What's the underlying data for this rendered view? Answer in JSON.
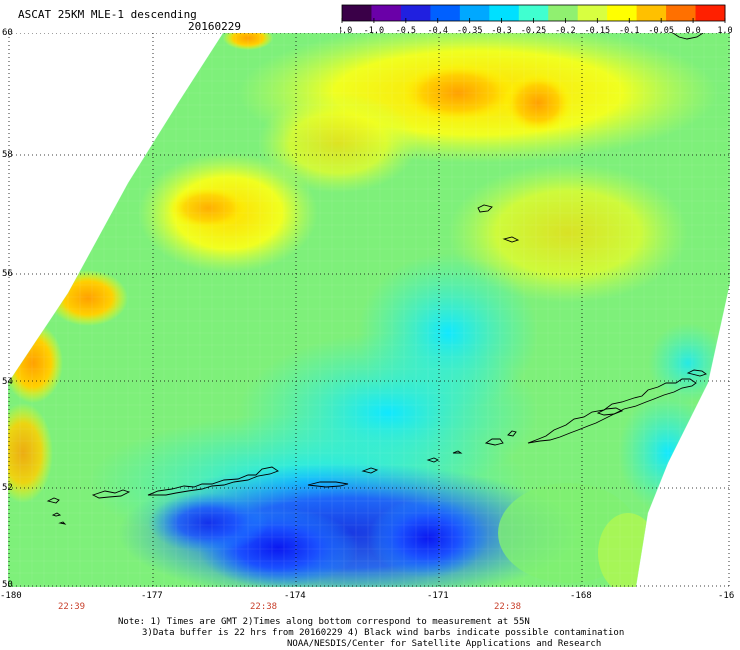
{
  "title": "ASCAT 25KM MLE-1 descending",
  "date": "20160229",
  "colorbar": {
    "labels": [
      "-3.0",
      "-1.0",
      "-0.5",
      "-0.4",
      "-0.35",
      "-0.3",
      "-0.25",
      "-0.2",
      "-0.15",
      "-0.1",
      "-0.05",
      "0.0",
      "1.0"
    ],
    "colors": [
      "#3a0048",
      "#6a00a8",
      "#2020e0",
      "#0060ff",
      "#00a8ff",
      "#00e0ff",
      "#40ffd0",
      "#90f070",
      "#d8ff40",
      "#ffff00",
      "#ffc000",
      "#ff7000",
      "#ff2000"
    ]
  },
  "axes": {
    "lat_labels": [
      "60",
      "58",
      "56",
      "54",
      "52",
      "50"
    ],
    "lon_labels": [
      "-180",
      "-177",
      "-174",
      "-171",
      "-168",
      "-16"
    ]
  },
  "pass_times": [
    "22:39",
    "22:38",
    "22:38"
  ],
  "notes": [
    "Note: 1) Times are GMT 2)Times along bottom correspond to measurement at 55N",
    "3)Data buffer is 22 hrs from 20160229 4) Black wind barbs indicate possible contamination",
    "NOAA/NESDIS/Center for Satellite Applications and Research"
  ],
  "colors": {
    "time_label": "#c8402c",
    "grid": "#000000",
    "land": "#000000"
  }
}
